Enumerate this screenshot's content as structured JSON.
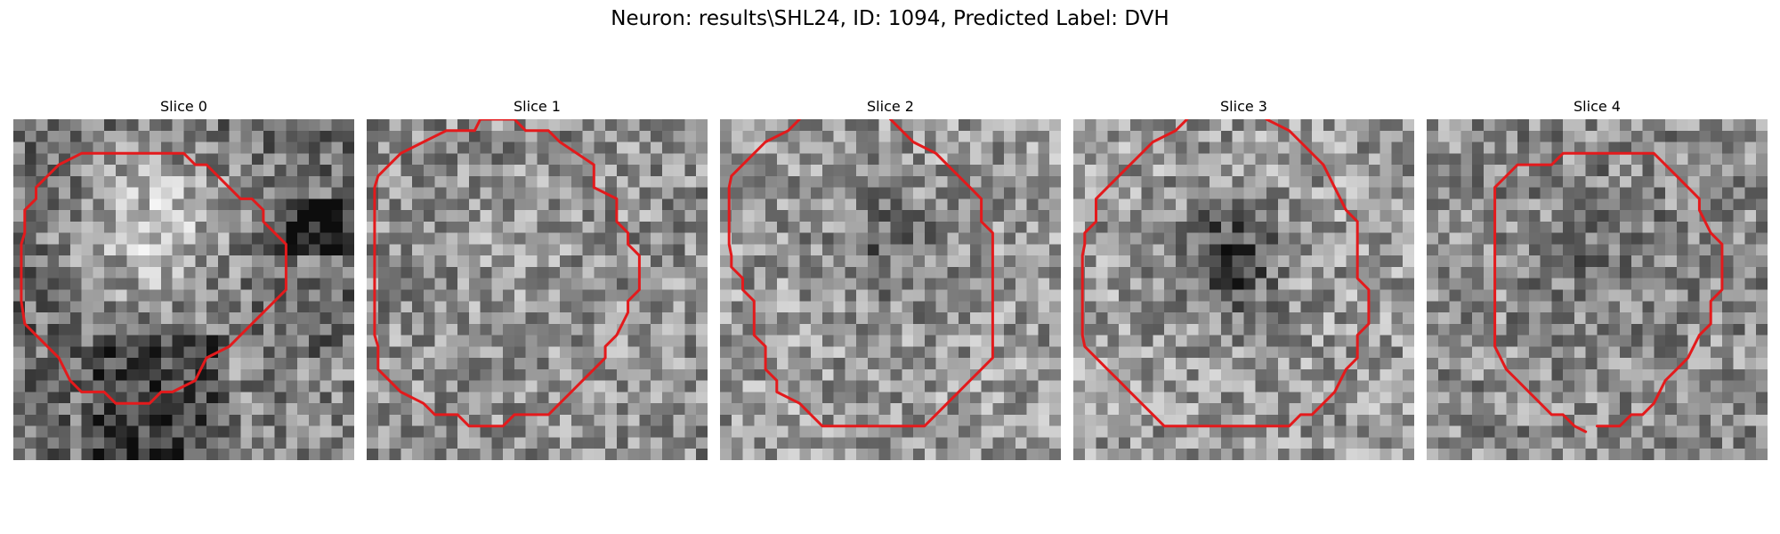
{
  "figure": {
    "title": "Neuron: results\\SHL24, ID: 1094, Predicted Label: DVH",
    "contour_color": "#e31a1c"
  },
  "panels": [
    {
      "title": "Slice 0",
      "texture": "bright-center",
      "contour": [
        [
          6.5,
          3
        ],
        [
          15,
          3
        ],
        [
          16,
          4
        ],
        [
          17,
          4
        ],
        [
          20,
          7
        ],
        [
          21,
          7
        ],
        [
          22,
          8
        ],
        [
          22,
          9
        ],
        [
          23,
          10
        ],
        [
          24,
          11
        ],
        [
          24,
          15
        ],
        [
          23,
          16
        ],
        [
          20,
          19
        ],
        [
          19,
          20
        ],
        [
          17,
          21
        ],
        [
          16,
          23
        ],
        [
          14,
          24
        ],
        [
          13,
          24
        ],
        [
          12,
          25
        ],
        [
          9,
          25
        ],
        [
          8,
          24
        ],
        [
          6,
          24
        ],
        [
          5,
          23
        ],
        [
          4,
          21
        ],
        [
          2,
          19
        ],
        [
          1,
          18
        ],
        [
          0.7,
          16
        ],
        [
          0.7,
          11
        ],
        [
          1,
          10
        ],
        [
          1,
          8
        ],
        [
          2,
          7
        ],
        [
          2,
          6
        ],
        [
          3,
          5
        ],
        [
          4,
          4
        ],
        [
          6,
          3
        ],
        [
          6.5,
          3
        ]
      ]
    },
    {
      "title": "Slice 1",
      "texture": "uniform",
      "contour": [
        [
          5,
          2
        ],
        [
          7,
          1
        ],
        [
          9.5,
          1
        ],
        [
          10,
          0
        ],
        [
          13,
          0
        ],
        [
          14,
          1
        ],
        [
          16,
          1
        ],
        [
          17,
          2
        ],
        [
          20,
          4
        ],
        [
          20,
          6
        ],
        [
          22,
          7
        ],
        [
          22,
          9
        ],
        [
          23,
          10
        ],
        [
          23,
          11
        ],
        [
          24,
          12
        ],
        [
          24,
          15
        ],
        [
          23,
          16
        ],
        [
          23,
          17
        ],
        [
          22,
          19
        ],
        [
          21,
          20
        ],
        [
          21,
          21
        ],
        [
          19,
          23
        ],
        [
          18,
          24
        ],
        [
          17,
          25
        ],
        [
          16,
          26
        ],
        [
          13,
          26
        ],
        [
          12,
          27
        ],
        [
          9,
          27
        ],
        [
          8,
          26
        ],
        [
          6,
          26
        ],
        [
          5,
          25
        ],
        [
          3,
          24
        ],
        [
          2,
          23
        ],
        [
          1,
          22
        ],
        [
          1,
          20
        ],
        [
          0.7,
          19
        ],
        [
          0.7,
          6
        ],
        [
          1,
          5
        ],
        [
          2,
          4
        ],
        [
          3,
          3
        ],
        [
          5,
          2
        ]
      ]
    },
    {
      "title": "Slice 2",
      "texture": "dark-center",
      "contour": [
        [
          7,
          0
        ],
        [
          6,
          1
        ],
        [
          4,
          2
        ],
        [
          3,
          3
        ],
        [
          2,
          4
        ],
        [
          1,
          5
        ],
        [
          0.8,
          6
        ],
        [
          0.8,
          11
        ],
        [
          1,
          12
        ],
        [
          1,
          13
        ],
        [
          2,
          14
        ],
        [
          2,
          15
        ],
        [
          3,
          16
        ],
        [
          3,
          19
        ],
        [
          4,
          20
        ],
        [
          4,
          22
        ],
        [
          5,
          23
        ],
        [
          5,
          24
        ],
        [
          7,
          25
        ],
        [
          8,
          26
        ],
        [
          9,
          27
        ],
        [
          18,
          27
        ],
        [
          19,
          26
        ],
        [
          20,
          25
        ],
        [
          21,
          24
        ],
        [
          22,
          23
        ],
        [
          23,
          22
        ],
        [
          24,
          21
        ],
        [
          24,
          10
        ],
        [
          23,
          9
        ],
        [
          23,
          7
        ],
        [
          22,
          6
        ],
        [
          21,
          5
        ],
        [
          20,
          4
        ],
        [
          19,
          3
        ],
        [
          17,
          2
        ],
        [
          16,
          1
        ],
        [
          15,
          0
        ]
      ]
    },
    {
      "title": "Slice 3",
      "texture": "dark-blob",
      "contour": [
        [
          10,
          0
        ],
        [
          9,
          1
        ],
        [
          7,
          2
        ],
        [
          6,
          3
        ],
        [
          5,
          4
        ],
        [
          4,
          5
        ],
        [
          3,
          6
        ],
        [
          2,
          7
        ],
        [
          2,
          9
        ],
        [
          1,
          10
        ],
        [
          1,
          11
        ],
        [
          0.8,
          12
        ],
        [
          0.8,
          19
        ],
        [
          1,
          20
        ],
        [
          2,
          21
        ],
        [
          3,
          22
        ],
        [
          4,
          23
        ],
        [
          5,
          24
        ],
        [
          6,
          25
        ],
        [
          7,
          26
        ],
        [
          8,
          27
        ],
        [
          19,
          27
        ],
        [
          20,
          26
        ],
        [
          21,
          26
        ],
        [
          22,
          25
        ],
        [
          23,
          24
        ],
        [
          24,
          22
        ],
        [
          25,
          21
        ],
        [
          25,
          19
        ],
        [
          26,
          18
        ],
        [
          26,
          15
        ],
        [
          25,
          14
        ],
        [
          25,
          11
        ],
        [
          25,
          9
        ],
        [
          24,
          8
        ],
        [
          23,
          6
        ],
        [
          22,
          4
        ],
        [
          20,
          2
        ],
        [
          19,
          1
        ],
        [
          17,
          0
        ]
      ]
    },
    {
      "title": "Slice 4",
      "texture": "noisy",
      "contour": [
        [
          15,
          27
        ],
        [
          17,
          27
        ],
        [
          18,
          26
        ],
        [
          19,
          26
        ],
        [
          20,
          25
        ],
        [
          21,
          23
        ],
        [
          22,
          22
        ],
        [
          23,
          21
        ],
        [
          24,
          19
        ],
        [
          25,
          18
        ],
        [
          25,
          16
        ],
        [
          26,
          15
        ],
        [
          26,
          11
        ],
        [
          25,
          10
        ],
        [
          24,
          8
        ],
        [
          24,
          7
        ],
        [
          23,
          6
        ],
        [
          22,
          5
        ],
        [
          21,
          4
        ],
        [
          20,
          3
        ],
        [
          19,
          3
        ],
        [
          19,
          3
        ],
        [
          12,
          3
        ],
        [
          11,
          4
        ],
        [
          8,
          4
        ],
        [
          7,
          5
        ],
        [
          6,
          6
        ],
        [
          6,
          8
        ],
        [
          6,
          9
        ],
        [
          6,
          12
        ],
        [
          6,
          20
        ],
        [
          7,
          22
        ],
        [
          8,
          23
        ],
        [
          9,
          24
        ],
        [
          10,
          25
        ],
        [
          11,
          26
        ],
        [
          12,
          26
        ],
        [
          13,
          27
        ],
        [
          14,
          27.5
        ]
      ]
    }
  ]
}
